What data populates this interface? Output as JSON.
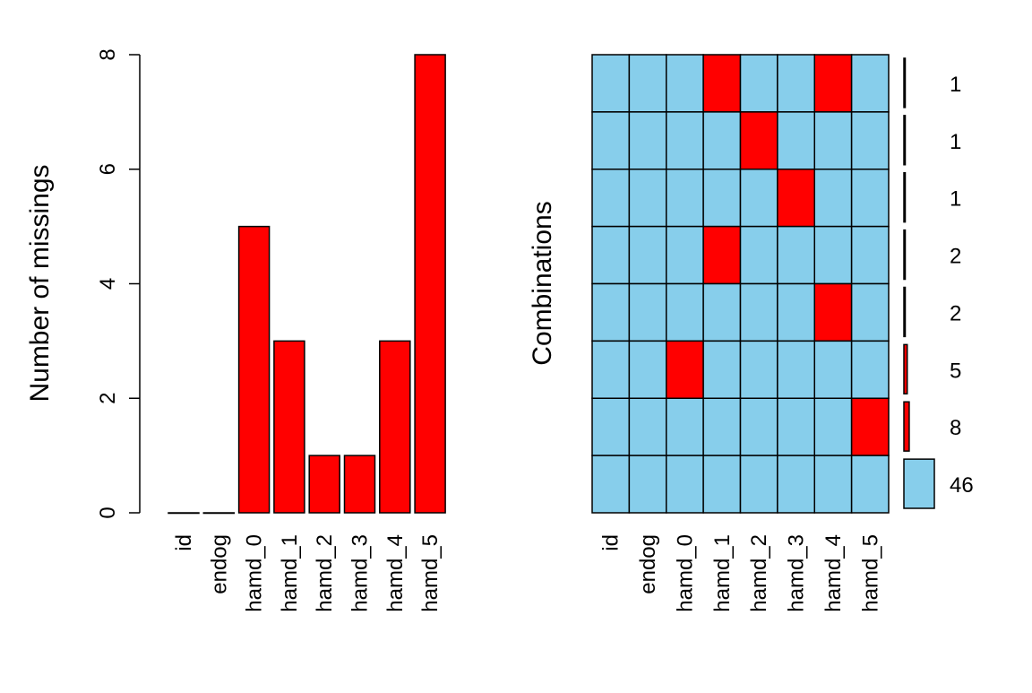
{
  "chart_data": [
    {
      "type": "bar",
      "ylabel": "Number of missings",
      "xlabel": "",
      "categories": [
        "id",
        "endog",
        "hamd_0",
        "hamd_1",
        "hamd_2",
        "hamd_3",
        "hamd_4",
        "hamd_5"
      ],
      "values": [
        0,
        0,
        5,
        3,
        1,
        1,
        3,
        8
      ],
      "ylim": [
        0,
        8
      ],
      "yticks": [
        "0",
        "2",
        "4",
        "6",
        "8"
      ],
      "bar_color": "#FF0000",
      "grid": false
    },
    {
      "type": "heatmap",
      "ylabel": "Combinations",
      "columns": [
        "id",
        "endog",
        "hamd_0",
        "hamd_1",
        "hamd_2",
        "hamd_3",
        "hamd_4",
        "hamd_5"
      ],
      "rows": [
        {
          "missing": [
            0,
            0,
            0,
            1,
            0,
            0,
            1,
            0
          ],
          "count": 1,
          "count_label": "1",
          "bar_color": "#000000"
        },
        {
          "missing": [
            0,
            0,
            0,
            0,
            1,
            0,
            0,
            0
          ],
          "count": 1,
          "count_label": "1",
          "bar_color": "#000000"
        },
        {
          "missing": [
            0,
            0,
            0,
            0,
            0,
            1,
            0,
            0
          ],
          "count": 1,
          "count_label": "1",
          "bar_color": "#000000"
        },
        {
          "missing": [
            0,
            0,
            0,
            1,
            0,
            0,
            0,
            0
          ],
          "count": 2,
          "count_label": "2",
          "bar_color": "#000000"
        },
        {
          "missing": [
            0,
            0,
            0,
            0,
            0,
            0,
            1,
            0
          ],
          "count": 2,
          "count_label": "2",
          "bar_color": "#000000"
        },
        {
          "missing": [
            0,
            0,
            1,
            0,
            0,
            0,
            0,
            0
          ],
          "count": 5,
          "count_label": "5",
          "bar_color": "#FF0000"
        },
        {
          "missing": [
            0,
            0,
            0,
            0,
            0,
            0,
            0,
            1
          ],
          "count": 8,
          "count_label": "8",
          "bar_color": "#FF0000"
        },
        {
          "missing": [
            0,
            0,
            0,
            0,
            0,
            0,
            0,
            0
          ],
          "count": 46,
          "count_label": "46",
          "bar_color": "#87CEEB"
        }
      ],
      "missing_color": "#FF0000",
      "observed_color": "#87CEEB"
    }
  ]
}
